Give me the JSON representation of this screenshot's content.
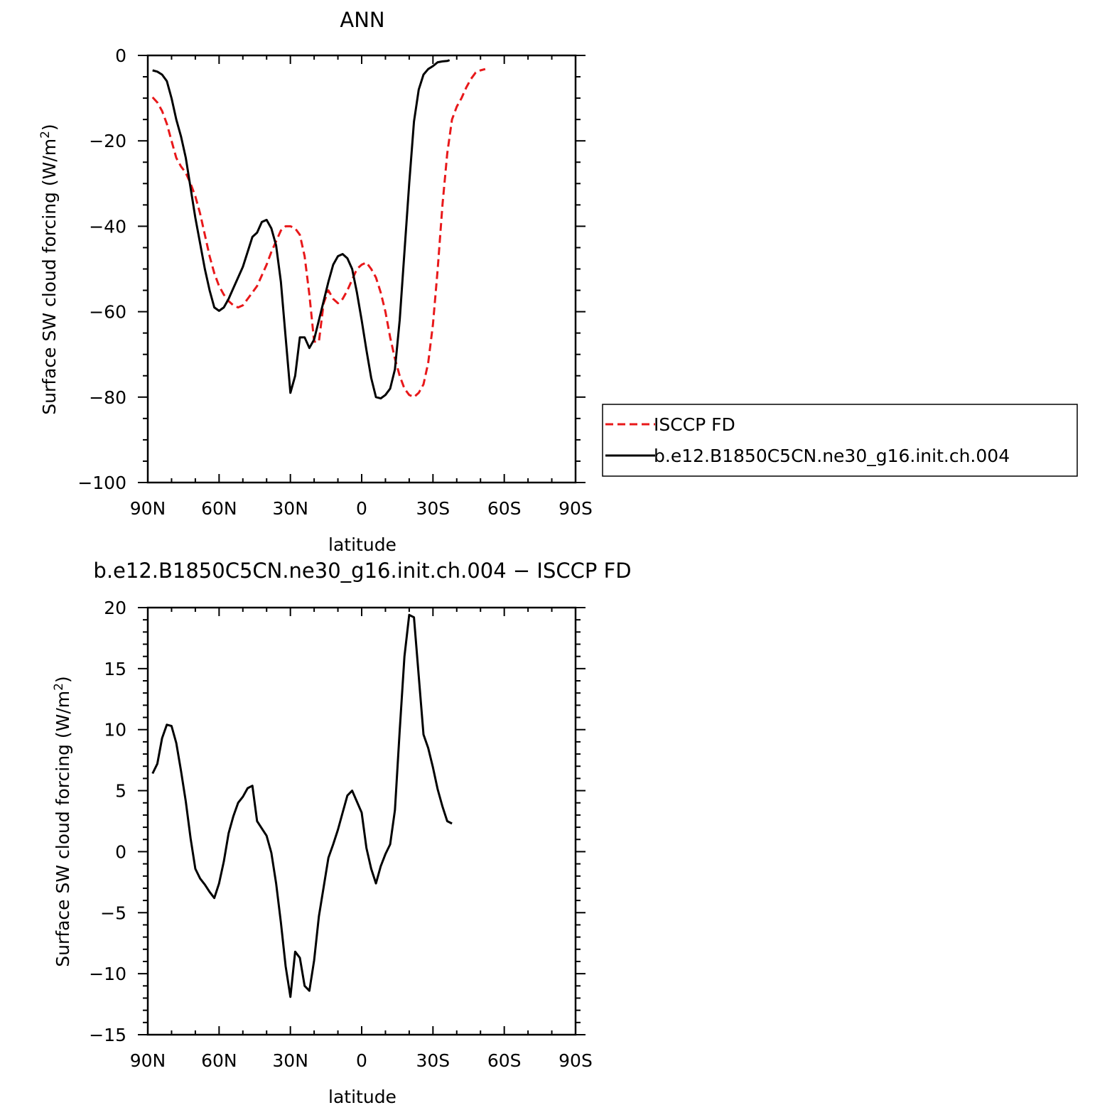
{
  "figure": {
    "top_title": "ANN",
    "bottom_title": "b.e12.B1850C5CN.ne30_g16.init.ch.004 − ISCCP FD"
  },
  "colors": {
    "obs": "#e8181a",
    "model": "#000000"
  },
  "chart_data": [
    {
      "type": "line",
      "title": "ANN",
      "xlabel": "latitude",
      "ylabel": "Surface SW cloud forcing (W/m²)",
      "ylabel_main": "Surface SW cloud forcing (W/m",
      "ylabel_sup": "2",
      "ylabel_close": ")",
      "xlim": [
        90,
        -90
      ],
      "ylim": [
        -100,
        0
      ],
      "x_ticks": [
        90,
        60,
        30,
        0,
        -30,
        -60,
        -90
      ],
      "x_tick_labels": [
        "90N",
        "60N",
        "30N",
        "0",
        "30S",
        "60S",
        "90S"
      ],
      "y_ticks": [
        0,
        -20,
        -40,
        -60,
        -80,
        -100
      ],
      "y_tick_labels": [
        "0",
        "−20",
        "−40",
        "−60",
        "−80",
        "−100"
      ],
      "legend": "outside-right",
      "series": [
        {
          "name": "ISCCP FD",
          "style": "dashed",
          "color": "#e8181a",
          "points": [
            [
              88,
              -9.8
            ],
            [
              86,
              -11
            ],
            [
              84,
              -13
            ],
            [
              82,
              -16
            ],
            [
              80,
              -20
            ],
            [
              78,
              -24
            ],
            [
              76,
              -26
            ],
            [
              74,
              -27.5
            ],
            [
              72,
              -30
            ],
            [
              70,
              -33
            ],
            [
              68,
              -37
            ],
            [
              66,
              -42
            ],
            [
              64,
              -47
            ],
            [
              62,
              -51
            ],
            [
              60,
              -54
            ],
            [
              58,
              -56
            ],
            [
              56,
              -57.5
            ],
            [
              54,
              -58.5
            ],
            [
              52,
              -59
            ],
            [
              50,
              -58.5
            ],
            [
              48,
              -57
            ],
            [
              46,
              -55.5
            ],
            [
              44,
              -54
            ],
            [
              42,
              -51.5
            ],
            [
              40,
              -49
            ],
            [
              38,
              -46
            ],
            [
              36,
              -43.5
            ],
            [
              34,
              -41
            ],
            [
              32,
              -40
            ],
            [
              30,
              -40
            ],
            [
              28,
              -40.5
            ],
            [
              26,
              -42
            ],
            [
              24,
              -47
            ],
            [
              22,
              -56
            ],
            [
              20,
              -67
            ],
            [
              18,
              -67
            ],
            [
              16,
              -58
            ],
            [
              14,
              -55
            ],
            [
              12,
              -57
            ],
            [
              10,
              -58
            ],
            [
              8,
              -57
            ],
            [
              6,
              -55
            ],
            [
              4,
              -52.5
            ],
            [
              2,
              -50
            ],
            [
              0,
              -49
            ],
            [
              -2,
              -48.5
            ],
            [
              -4,
              -50
            ],
            [
              -6,
              -52
            ],
            [
              -8,
              -55.5
            ],
            [
              -10,
              -60
            ],
            [
              -12,
              -66
            ],
            [
              -14,
              -71
            ],
            [
              -16,
              -75
            ],
            [
              -18,
              -78
            ],
            [
              -20,
              -79.5
            ],
            [
              -22,
              -80
            ],
            [
              -24,
              -79
            ],
            [
              -26,
              -77
            ],
            [
              -28,
              -72
            ],
            [
              -30,
              -63
            ],
            [
              -32,
              -50
            ],
            [
              -34,
              -35
            ],
            [
              -36,
              -23
            ],
            [
              -38,
              -15
            ],
            [
              -40,
              -12
            ],
            [
              -42,
              -10
            ],
            [
              -44,
              -7.5
            ],
            [
              -46,
              -5.5
            ],
            [
              -48,
              -4
            ],
            [
              -50,
              -3.5
            ],
            [
              -52,
              -3.2
            ]
          ]
        },
        {
          "name": "b.e12.B1850C5CN.ne30_g16.init.ch.004",
          "style": "solid",
          "color": "#000000",
          "points": [
            [
              88,
              -3.5
            ],
            [
              86,
              -3.8
            ],
            [
              84,
              -4.5
            ],
            [
              82,
              -6
            ],
            [
              80,
              -10
            ],
            [
              78,
              -15
            ],
            [
              76,
              -19
            ],
            [
              74,
              -24
            ],
            [
              72,
              -31
            ],
            [
              70,
              -38
            ],
            [
              68,
              -44
            ],
            [
              66,
              -50
            ],
            [
              64,
              -55
            ],
            [
              62,
              -59
            ],
            [
              60,
              -59.8
            ],
            [
              58,
              -59
            ],
            [
              56,
              -57
            ],
            [
              54,
              -54.5
            ],
            [
              52,
              -52
            ],
            [
              50,
              -49.5
            ],
            [
              48,
              -46
            ],
            [
              46,
              -42.5
            ],
            [
              44,
              -41.5
            ],
            [
              42,
              -39
            ],
            [
              40,
              -38.5
            ],
            [
              38,
              -40.5
            ],
            [
              36,
              -44.5
            ],
            [
              34,
              -53
            ],
            [
              32,
              -66
            ],
            [
              30,
              -79
            ],
            [
              28,
              -75
            ],
            [
              26,
              -66
            ],
            [
              24,
              -66
            ],
            [
              22,
              -68.5
            ],
            [
              20,
              -66.5
            ],
            [
              18,
              -62
            ],
            [
              16,
              -57.5
            ],
            [
              14,
              -53
            ],
            [
              12,
              -49
            ],
            [
              10,
              -47
            ],
            [
              8,
              -46.5
            ],
            [
              6,
              -47.5
            ],
            [
              4,
              -50
            ],
            [
              2,
              -55.5
            ],
            [
              0,
              -62
            ],
            [
              -2,
              -69
            ],
            [
              -4,
              -75.5
            ],
            [
              -6,
              -80
            ],
            [
              -8,
              -80.3
            ],
            [
              -10,
              -79.5
            ],
            [
              -12,
              -78
            ],
            [
              -14,
              -73.5
            ],
            [
              -16,
              -62
            ],
            [
              -18,
              -46
            ],
            [
              -20,
              -30
            ],
            [
              -22,
              -15.5
            ],
            [
              -24,
              -8
            ],
            [
              -26,
              -4.5
            ],
            [
              -28,
              -3.2
            ],
            [
              -30,
              -2.5
            ],
            [
              -32,
              -1.6
            ],
            [
              -34,
              -1.4
            ],
            [
              -36,
              -1.3
            ],
            [
              -37,
              -1.1
            ]
          ]
        }
      ]
    },
    {
      "type": "line",
      "title": "b.e12.B1850C5CN.ne30_g16.init.ch.004 − ISCCP FD",
      "xlabel": "latitude",
      "ylabel": "Surface SW cloud forcing (W/m²)",
      "ylabel_main": "Surface SW cloud forcing (W/m",
      "ylabel_sup": "2",
      "ylabel_close": ")",
      "xlim": [
        90,
        -90
      ],
      "ylim": [
        -15,
        20
      ],
      "x_ticks": [
        90,
        60,
        30,
        0,
        -30,
        -60,
        -90
      ],
      "x_tick_labels": [
        "90N",
        "60N",
        "30N",
        "0",
        "30S",
        "60S",
        "90S"
      ],
      "y_ticks": [
        20,
        15,
        10,
        5,
        0,
        -5,
        -10,
        -15
      ],
      "y_tick_labels": [
        "20",
        "15",
        "10",
        "5",
        "0",
        "−5",
        "−10",
        "−15"
      ],
      "series": [
        {
          "style": "solid",
          "color": "#000000",
          "points": [
            [
              88,
              6.4
            ],
            [
              86,
              7.2
            ],
            [
              84,
              9.3
            ],
            [
              82,
              10.4
            ],
            [
              80,
              10.3
            ],
            [
              78,
              8.9
            ],
            [
              76,
              6.6
            ],
            [
              74,
              4.1
            ],
            [
              72,
              1.1
            ],
            [
              70,
              -1.4
            ],
            [
              68,
              -2.2
            ],
            [
              66,
              -2.7
            ],
            [
              64,
              -3.3
            ],
            [
              62,
              -3.8
            ],
            [
              60,
              -2.6
            ],
            [
              58,
              -0.8
            ],
            [
              56,
              1.5
            ],
            [
              54,
              2.9
            ],
            [
              52,
              4
            ],
            [
              50,
              4.5
            ],
            [
              48,
              5.2
            ],
            [
              46,
              5.4
            ],
            [
              44,
              2.5
            ],
            [
              42,
              1.9
            ],
            [
              40,
              1.3
            ],
            [
              38,
              -0.1
            ],
            [
              36,
              -2.6
            ],
            [
              34,
              -5.8
            ],
            [
              32,
              -9.4
            ],
            [
              30,
              -11.9
            ],
            [
              28,
              -8.2
            ],
            [
              26,
              -8.7
            ],
            [
              24,
              -11
            ],
            [
              22,
              -11.4
            ],
            [
              20,
              -8.9
            ],
            [
              18,
              -5.3
            ],
            [
              16,
              -2.9
            ],
            [
              14,
              -0.5
            ],
            [
              12,
              0.6
            ],
            [
              10,
              1.8
            ],
            [
              8,
              3.2
            ],
            [
              6,
              4.6
            ],
            [
              4,
              5
            ],
            [
              2,
              4.1
            ],
            [
              0,
              3.2
            ],
            [
              -2,
              0.3
            ],
            [
              -4,
              -1.4
            ],
            [
              -6,
              -2.6
            ],
            [
              -8,
              -1.2
            ],
            [
              -10,
              -0.2
            ],
            [
              -12,
              0.6
            ],
            [
              -14,
              3.4
            ],
            [
              -16,
              9.9
            ],
            [
              -18,
              16
            ],
            [
              -20,
              19.4
            ],
            [
              -22,
              19.2
            ],
            [
              -24,
              14.4
            ],
            [
              -26,
              9.6
            ],
            [
              -28,
              8.5
            ],
            [
              -30,
              6.9
            ],
            [
              -32,
              5.1
            ],
            [
              -34,
              3.7
            ],
            [
              -36,
              2.5
            ],
            [
              -38,
              2.3
            ]
          ]
        }
      ]
    }
  ],
  "legend": {
    "items": [
      {
        "label": "ISCCP FD",
        "style": "dashed",
        "color": "#e8181a"
      },
      {
        "label": "b.e12.B1850C5CN.ne30_g16.init.ch.004",
        "style": "solid",
        "color": "#000000"
      }
    ]
  }
}
